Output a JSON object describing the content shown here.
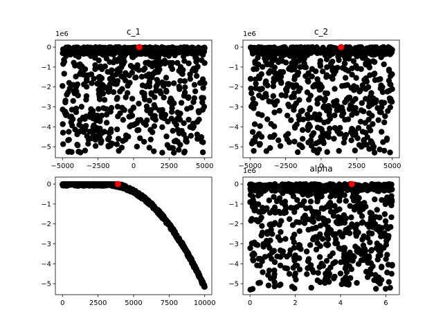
{
  "chart_data": [
    {
      "type": "scatter",
      "title": "c_1",
      "offset_label": "1e6",
      "xlim": [
        -5500,
        5500
      ],
      "ylim": [
        -5.55,
        0.35
      ],
      "xticks": [
        -5000,
        -2500,
        0,
        2500,
        5000
      ],
      "xtick_labels": [
        "−5000",
        "−2500",
        "0",
        "2500",
        "5000"
      ],
      "yticks": [
        0,
        -1,
        -2,
        -3,
        -4,
        -5
      ],
      "ytick_labels": [
        "0",
        "−1",
        "−2",
        "−3",
        "−4",
        "−5"
      ],
      "point_count": 900,
      "x_range": [
        -5000,
        5000
      ],
      "y_min": -5.3,
      "highlight": {
        "x": 400,
        "y": 0.0
      },
      "point_color": "#000000",
      "highlight_color": "#ff0000"
    },
    {
      "type": "scatter",
      "title": "c_2",
      "offset_label": "1e6",
      "xlim": [
        -5500,
        5500
      ],
      "ylim": [
        -5.55,
        0.35
      ],
      "xticks": [
        -5000,
        -2500,
        0,
        2500,
        5000
      ],
      "xtick_labels": [
        "−5000",
        "−2500",
        "0",
        "2500",
        "5000"
      ],
      "yticks": [
        0,
        -1,
        -2,
        -3,
        -4,
        -5
      ],
      "ytick_labels": [
        "0",
        "−1",
        "−2",
        "−3",
        "−4",
        "−5"
      ],
      "point_count": 900,
      "x_range": [
        -5000,
        5000
      ],
      "y_min": -5.3,
      "highlight": {
        "x": 1400,
        "y": 0.0
      },
      "point_color": "#000000",
      "highlight_color": "#ff0000"
    },
    {
      "type": "scatter",
      "title": "",
      "offset_label": "",
      "xlim": [
        -500,
        10500
      ],
      "ylim": [
        -5.55,
        0.35
      ],
      "xticks": [
        0,
        2500,
        5000,
        7500,
        10000
      ],
      "xtick_labels": [
        "0",
        "2500",
        "5000",
        "7500",
        "10000"
      ],
      "yticks": [
        0,
        -1,
        -2,
        -3,
        -4,
        -5
      ],
      "ytick_labels": [
        "0",
        "−1",
        "−2",
        "−3",
        "−4",
        "−5"
      ],
      "point_count": 700,
      "x_range": [
        0,
        10000
      ],
      "y_min": -5.3,
      "curve": "quadratic-drop",
      "highlight": {
        "x": 3900,
        "y": 0.0
      },
      "point_color": "#000000",
      "highlight_color": "#ff0000"
    },
    {
      "type": "scatter",
      "title": "alpha",
      "offset_label": "1e6",
      "xlim": [
        -0.31,
        6.6
      ],
      "ylim": [
        -5.55,
        0.35
      ],
      "xticks": [
        0,
        2,
        4,
        6
      ],
      "xtick_labels": [
        "0",
        "2",
        "4",
        "6"
      ],
      "yticks": [
        0,
        -1,
        -2,
        -3,
        -4,
        -5
      ],
      "ytick_labels": [
        "0",
        "−1",
        "−2",
        "−3",
        "−4",
        "−5"
      ],
      "point_count": 900,
      "x_range": [
        0,
        6.28
      ],
      "y_min": -5.3,
      "highlight": {
        "x": 4.5,
        "y": 0.0
      },
      "point_color": "#000000",
      "highlight_color": "#ff0000"
    }
  ]
}
